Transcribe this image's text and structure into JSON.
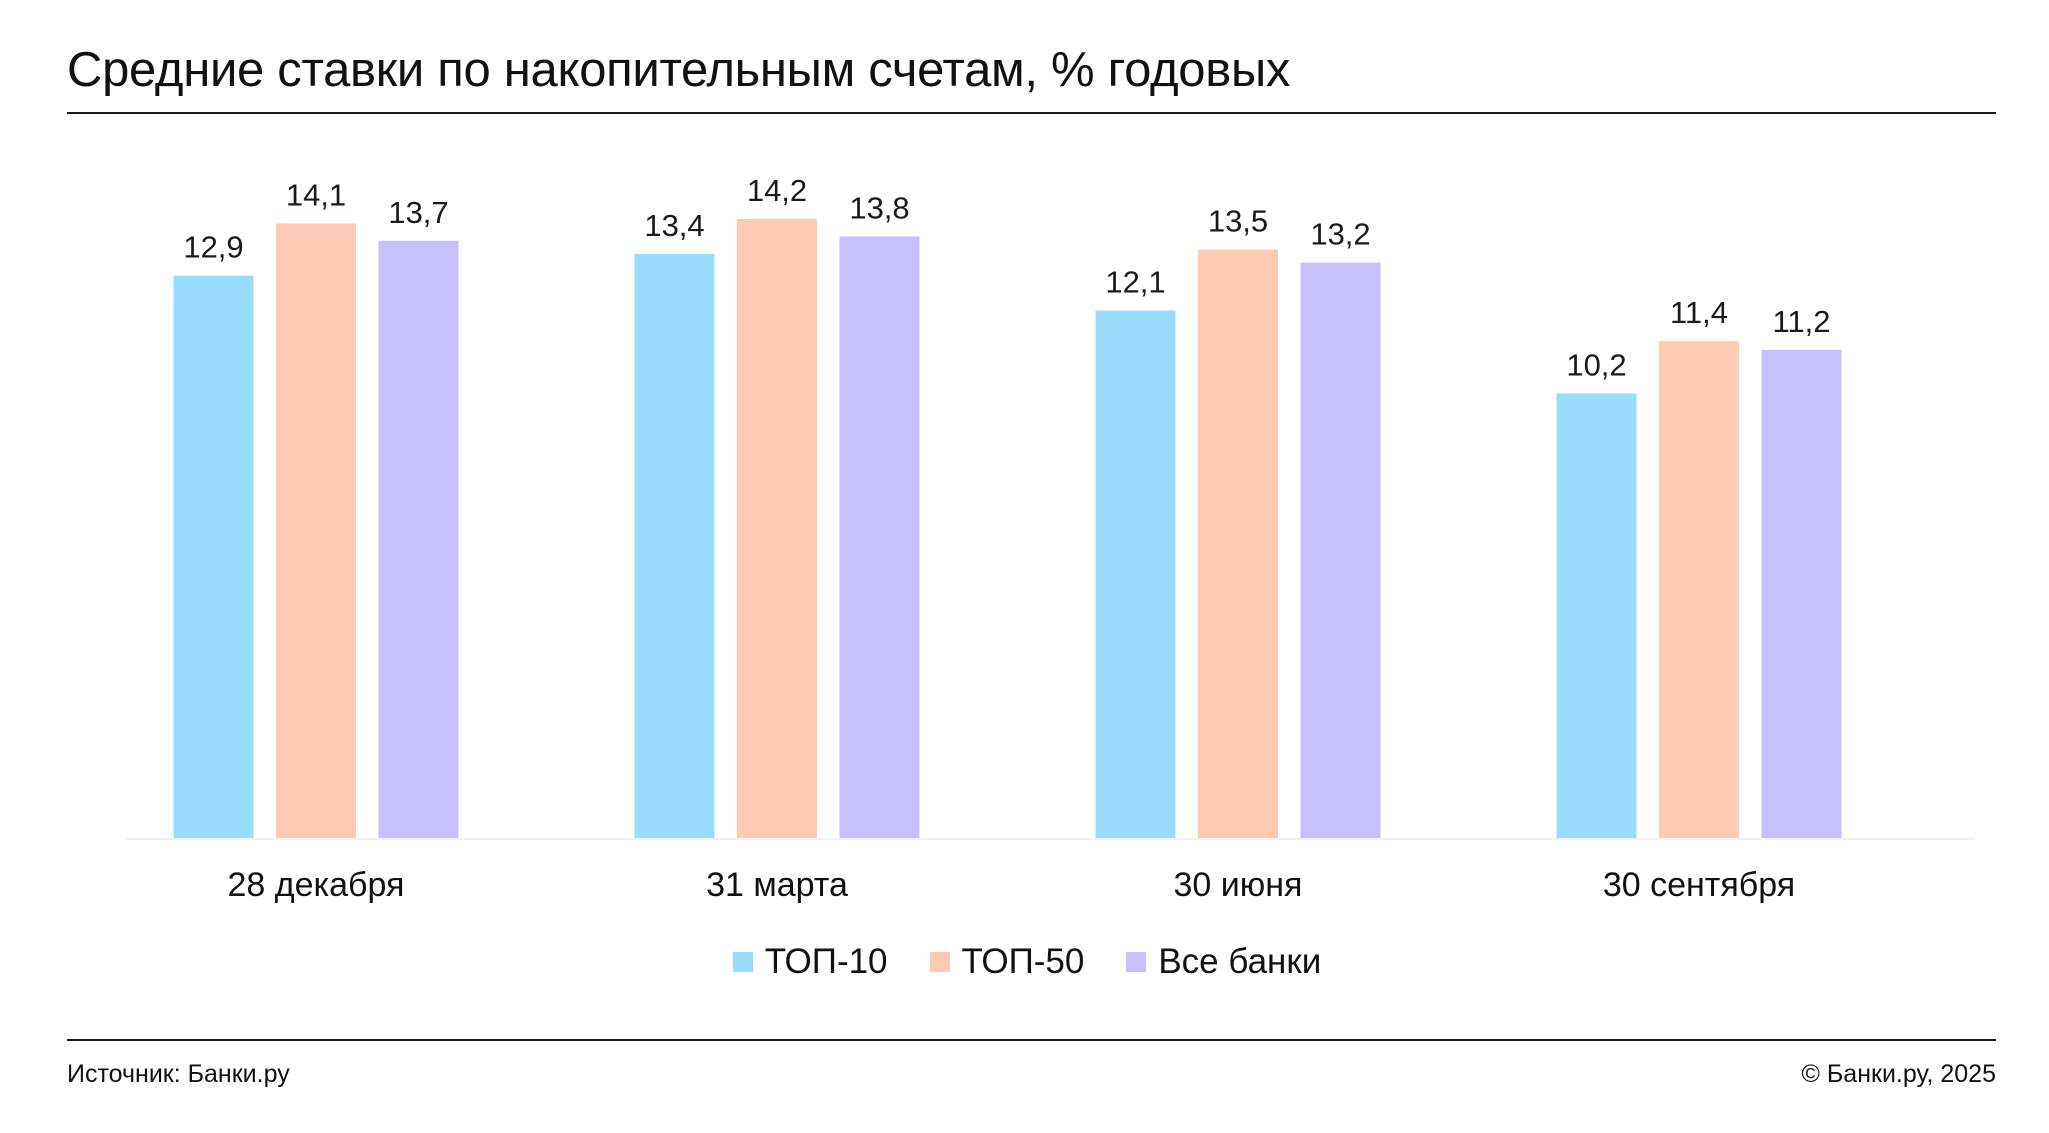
{
  "chart_data": {
    "type": "bar",
    "title": "Средние ставки по накопительным счетам, % годовых",
    "categories": [
      "28 декабря",
      "31 марта",
      "30 июня",
      "30 сентября"
    ],
    "series": [
      {
        "name": "ТОП-10",
        "values": [
          12.9,
          13.4,
          12.1,
          10.2
        ],
        "labels": [
          "12,9",
          "13,4",
          "12,1",
          "10,2"
        ],
        "color": "#99dcfd"
      },
      {
        "name": "ТОП-50",
        "values": [
          14.1,
          14.2,
          13.5,
          11.4
        ],
        "labels": [
          "14,1",
          "14,2",
          "13,5",
          "11,4"
        ],
        "color": "#fecab3"
      },
      {
        "name": "Все банки",
        "values": [
          13.7,
          13.8,
          13.2,
          11.2
        ],
        "labels": [
          "13,7",
          "13,8",
          "13,2",
          "11,2"
        ],
        "color": "#c8bffd"
      }
    ],
    "ylim": [
      0,
      14.2
    ],
    "grid": false,
    "legend": "bottom-center"
  },
  "footer": {
    "source": "Источник: Банки.ру",
    "copyright": "© Банки.ру, 2025"
  }
}
